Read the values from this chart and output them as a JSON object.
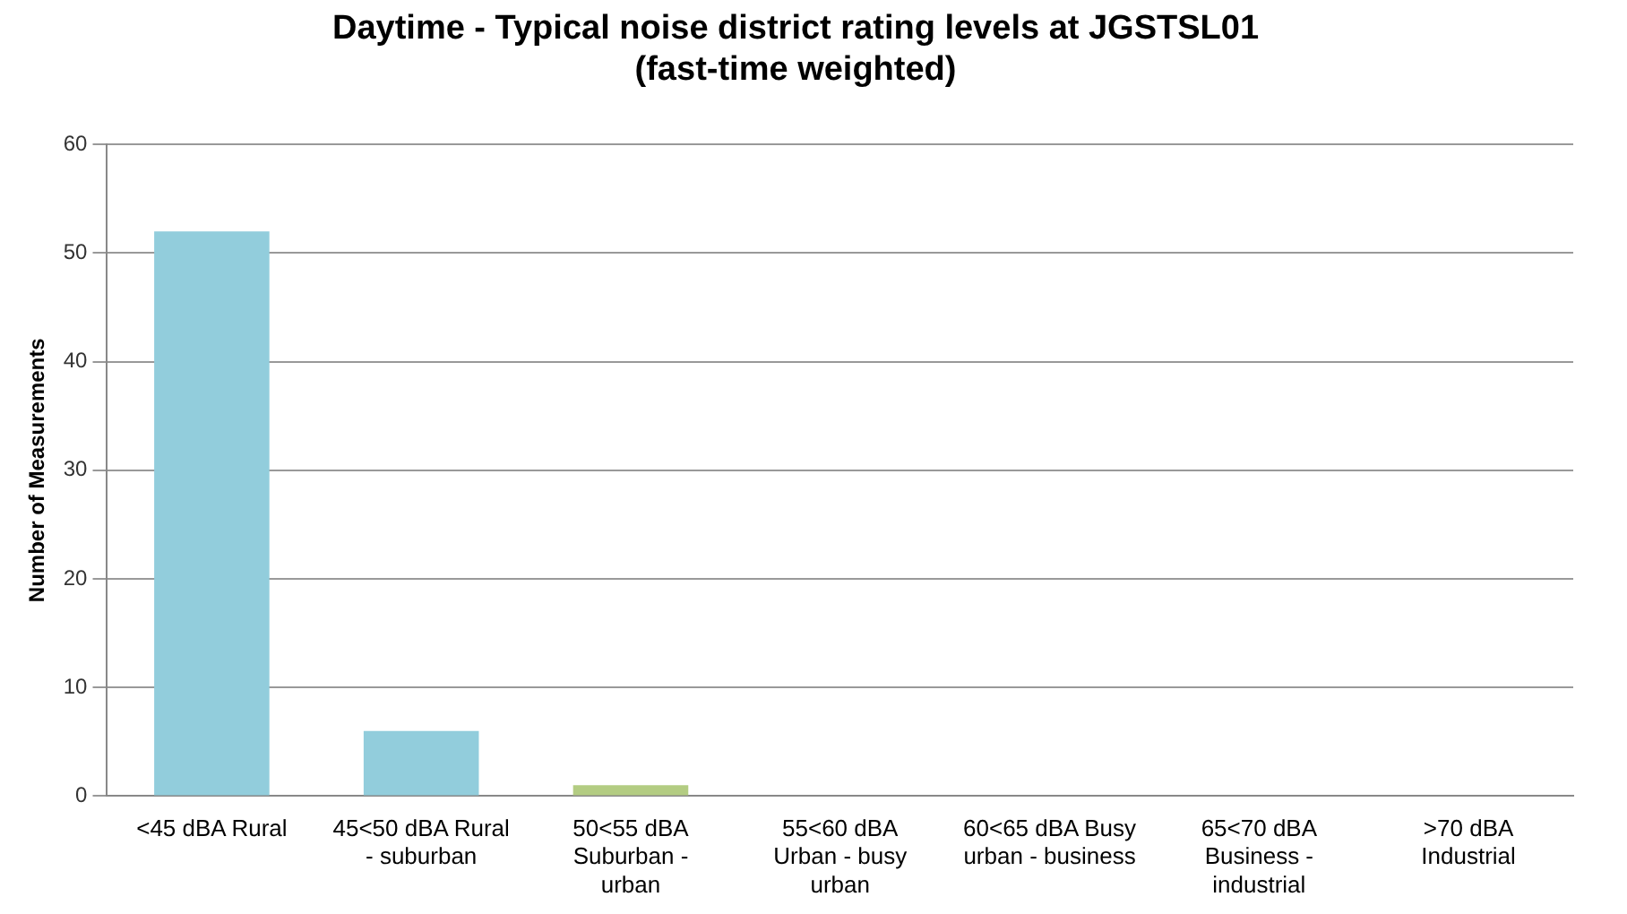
{
  "chart_data": {
    "type": "bar",
    "title": "Daytime - Typical noise district rating levels at JGSTSL01\n(fast-time weighted)",
    "ylabel": "Number of Measurements",
    "categories": [
      "<45 dBA Rural",
      "45<50 dBA Rural - suburban",
      "50<55 dBA Suburban - urban",
      "55<60 dBA Urban - busy urban",
      "60<65 dBA Busy urban - business",
      "65<70 dBA Business - industrial",
      ">70 dBA Industrial"
    ],
    "values": [
      52,
      6,
      1,
      0,
      0,
      0,
      0
    ],
    "colors": [
      "#92cddc",
      "#92cddc",
      "#b3cc82",
      "#c4c43c",
      "#c89a70",
      "#7a50d8",
      "#a50021"
    ],
    "ylim": [
      0,
      60
    ],
    "yticks": [
      0,
      10,
      20,
      30,
      40,
      50,
      60
    ],
    "grid": "y",
    "legend": false
  }
}
